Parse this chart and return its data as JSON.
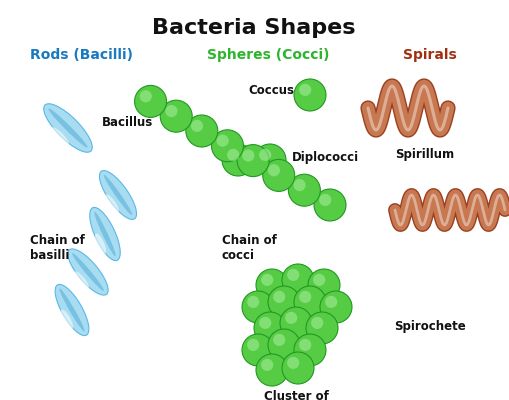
{
  "title": "Bacteria Shapes",
  "title_fontsize": 16,
  "title_fontweight": "bold",
  "bg_color": "#ffffff",
  "col1_header": "Rods (Bacilli)",
  "col2_header": "Spheres (Cocci)",
  "col3_header": "Spirals",
  "col1_color": "#1a7abf",
  "col2_color": "#2db52d",
  "col3_color": "#a03010",
  "label_color": "#111111",
  "rod_color_face": "#a8dcf0",
  "rod_color_edge": "#5ab8e8",
  "rod_color_dark": "#2090cc",
  "cocci_face": "#55cc44",
  "cocci_edge": "#229922",
  "cocci_highlight": "#aaeea0",
  "spiral_color": "#c87850",
  "spiral_dark": "#9a4020",
  "figsize": [
    5.09,
    4.0
  ],
  "dpi": 100
}
